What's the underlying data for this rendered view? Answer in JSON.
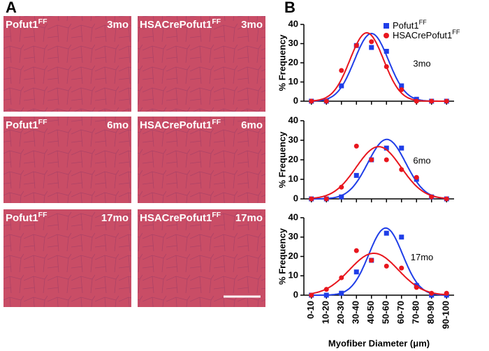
{
  "panel_a": {
    "label": "A",
    "images": [
      {
        "genotype": "Pofut1",
        "superscript": "FF",
        "age": "3mo"
      },
      {
        "genotype": "HSACrePofut1",
        "superscript": "FF",
        "age": "3mo"
      },
      {
        "genotype": "Pofut1",
        "superscript": "FF",
        "age": "6mo"
      },
      {
        "genotype": "HSACrePofut1",
        "superscript": "FF",
        "age": "6mo"
      },
      {
        "genotype": "Pofut1",
        "superscript": "FF",
        "age": "17mo"
      },
      {
        "genotype": "HSACrePofut1",
        "superscript": "FF",
        "age": "17mo"
      }
    ]
  },
  "panel_b": {
    "label": "B"
  },
  "chart_data": [
    {
      "type": "scatter",
      "annotation": "3mo",
      "ylabel": "% Frequency",
      "ylim": [
        0,
        40
      ],
      "yticks": [
        0,
        10,
        20,
        30,
        40
      ],
      "legend": "top-right",
      "series": [
        {
          "name": "Pofut1",
          "name_superscript": "FF",
          "color": "#1f3ee8",
          "marker": "square",
          "values": [
            0,
            0,
            8,
            29,
            28,
            26,
            8,
            1,
            0,
            0
          ]
        },
        {
          "name": "HSACrePofut1",
          "name_superscript": "FF",
          "color": "#e8161e",
          "marker": "circle",
          "values": [
            0,
            0,
            16,
            29,
            31,
            18,
            6,
            0,
            0,
            0
          ]
        }
      ]
    },
    {
      "type": "scatter",
      "annotation": "6mo",
      "ylabel": "% Frequency",
      "ylim": [
        0,
        40
      ],
      "yticks": [
        0,
        10,
        20,
        30,
        40
      ],
      "series": [
        {
          "color": "#1f3ee8",
          "marker": "square",
          "values": [
            0,
            0,
            1,
            12,
            20,
            26,
            26,
            10,
            1,
            0
          ]
        },
        {
          "color": "#e8161e",
          "marker": "circle",
          "values": [
            0,
            0,
            6,
            27,
            20,
            20,
            15,
            11,
            1,
            0
          ]
        }
      ]
    },
    {
      "type": "scatter",
      "annotation": "17mo",
      "ylabel": "% Frequency",
      "ylim": [
        0,
        40
      ],
      "yticks": [
        0,
        10,
        20,
        30,
        40
      ],
      "xlabel": "Myofiber Diameter (μm)",
      "categories": [
        "0-10",
        "10-20",
        "20-30",
        "30-40",
        "40-50",
        "50-60",
        "60-70",
        "70-80",
        "80-90",
        "90-100"
      ],
      "series": [
        {
          "color": "#1f3ee8",
          "marker": "square",
          "values": [
            0,
            0,
            1,
            12,
            18,
            32,
            30,
            5,
            0,
            0
          ]
        },
        {
          "color": "#e8161e",
          "marker": "circle",
          "values": [
            0,
            3,
            9,
            23,
            18,
            15,
            14,
            4,
            1,
            1
          ]
        }
      ]
    }
  ]
}
